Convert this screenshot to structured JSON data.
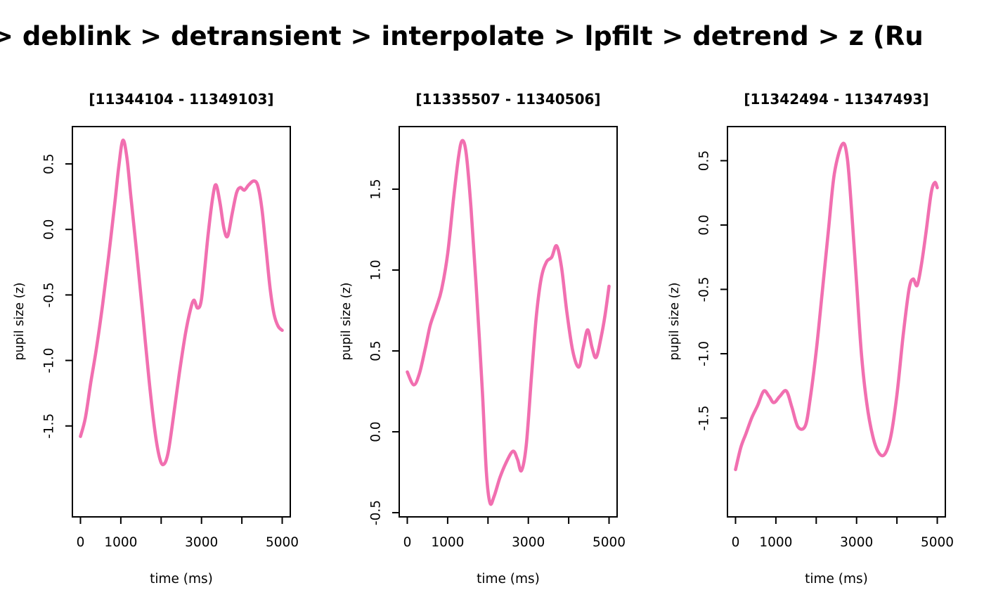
{
  "header": {
    "title": "> deblink > detransient > interpolate > lpfilt > detrend > z (Ru"
  },
  "chart_data": [
    {
      "type": "line",
      "title": "[11344104 - 11349103]",
      "xlabel": "time (ms)",
      "ylabel": "pupil size (z)",
      "xlim": [
        -200,
        5200
      ],
      "ylim": [
        -2.194,
        0.785
      ],
      "x_ticks": {
        "values": [
          0,
          1000,
          2000,
          3000,
          4000,
          5000
        ],
        "labels": [
          "0",
          "1000",
          "",
          "3000",
          "",
          "5000"
        ]
      },
      "y_ticks": {
        "values": [
          0.5,
          0.0,
          -0.5,
          -1.0,
          -1.5
        ],
        "labels": [
          "0.5",
          "0.0",
          "-0.5",
          "-1.0",
          "-1.5"
        ]
      },
      "line_color": "#F16FB0",
      "line_width": 4.6,
      "grid": false,
      "legend": "none",
      "series": [
        {
          "name": "pupil size (z)",
          "x": [
            0,
            120,
            250,
            400,
            550,
            700,
            850,
            950,
            1050,
            1150,
            1250,
            1400,
            1550,
            1700,
            1850,
            1975,
            2075,
            2175,
            2300,
            2450,
            2600,
            2720,
            2810,
            2900,
            2990,
            3080,
            3170,
            3280,
            3360,
            3460,
            3560,
            3650,
            3760,
            3870,
            3960,
            4060,
            4170,
            4300,
            4400,
            4500,
            4600,
            4700,
            4800,
            4900,
            5000
          ],
          "y": [
            -1.58,
            -1.44,
            -1.18,
            -0.9,
            -0.57,
            -0.2,
            0.2,
            0.48,
            0.68,
            0.55,
            0.25,
            -0.2,
            -0.67,
            -1.15,
            -1.55,
            -1.76,
            -1.79,
            -1.7,
            -1.44,
            -1.1,
            -0.8,
            -0.62,
            -0.54,
            -0.6,
            -0.55,
            -0.3,
            -0.02,
            0.25,
            0.34,
            0.2,
            0.0,
            -0.05,
            0.12,
            0.28,
            0.32,
            0.3,
            0.34,
            0.37,
            0.33,
            0.15,
            -0.15,
            -0.45,
            -0.65,
            -0.74,
            -0.77
          ]
        }
      ]
    },
    {
      "type": "line",
      "title": "[11335507 - 11340506]",
      "xlabel": "time (ms)",
      "ylabel": "pupil size (z)",
      "xlim": [
        -200,
        5200
      ],
      "ylim": [
        -0.526,
        1.887
      ],
      "x_ticks": {
        "values": [
          0,
          1000,
          2000,
          3000,
          4000,
          5000
        ],
        "labels": [
          "0",
          "1000",
          "",
          "3000",
          "",
          "5000"
        ]
      },
      "y_ticks": {
        "values": [
          1.5,
          1.0,
          0.5,
          0.0,
          -0.5
        ],
        "labels": [
          "1.5",
          "1.0",
          "0.5",
          "0.0",
          "-0.5"
        ]
      },
      "line_color": "#F16FB0",
      "line_width": 4.6,
      "grid": false,
      "legend": "none",
      "series": [
        {
          "name": "pupil size (z)",
          "x": [
            0,
            160,
            300,
            450,
            570,
            720,
            850,
            1000,
            1150,
            1270,
            1360,
            1460,
            1580,
            1720,
            1860,
            1960,
            2050,
            2150,
            2300,
            2450,
            2620,
            2730,
            2830,
            2950,
            3080,
            3200,
            3320,
            3450,
            3580,
            3700,
            3820,
            3950,
            4100,
            4250,
            4360,
            4470,
            4580,
            4680,
            4800,
            4900,
            5000
          ],
          "y": [
            0.37,
            0.29,
            0.36,
            0.52,
            0.66,
            0.77,
            0.88,
            1.1,
            1.45,
            1.7,
            1.8,
            1.72,
            1.38,
            0.85,
            0.25,
            -0.25,
            -0.44,
            -0.4,
            -0.28,
            -0.19,
            -0.12,
            -0.17,
            -0.24,
            -0.08,
            0.35,
            0.72,
            0.95,
            1.05,
            1.08,
            1.15,
            1.02,
            0.75,
            0.5,
            0.4,
            0.52,
            0.63,
            0.52,
            0.46,
            0.58,
            0.72,
            0.9
          ]
        }
      ]
    },
    {
      "type": "line",
      "title": "[11342494 - 11347493]",
      "xlabel": "time (ms)",
      "ylabel": "pupil size (z)",
      "xlim": [
        -200,
        5200
      ],
      "ylim": [
        -2.268,
        0.765
      ],
      "x_ticks": {
        "values": [
          0,
          1000,
          2000,
          3000,
          4000,
          5000
        ],
        "labels": [
          "0",
          "1000",
          "",
          "3000",
          "",
          "5000"
        ]
      },
      "y_ticks": {
        "values": [
          0.5,
          0.0,
          -0.5,
          -1.0,
          -1.5
        ],
        "labels": [
          "0.5",
          "0.0",
          "-0.5",
          "-1.0",
          "-1.5"
        ]
      },
      "line_color": "#F16FB0",
      "line_width": 4.6,
      "grid": false,
      "legend": "none",
      "series": [
        {
          "name": "pupil size (z)",
          "x": [
            0,
            130,
            260,
            400,
            550,
            700,
            830,
            950,
            1100,
            1260,
            1400,
            1550,
            1730,
            1850,
            2000,
            2150,
            2300,
            2450,
            2650,
            2770,
            2880,
            3000,
            3120,
            3250,
            3400,
            3550,
            3700,
            3850,
            4000,
            4150,
            4300,
            4400,
            4500,
            4600,
            4720,
            4850,
            4940,
            5000
          ],
          "y": [
            -1.9,
            -1.73,
            -1.62,
            -1.5,
            -1.4,
            -1.29,
            -1.33,
            -1.38,
            -1.33,
            -1.29,
            -1.42,
            -1.57,
            -1.56,
            -1.35,
            -0.98,
            -0.52,
            -0.05,
            0.4,
            0.63,
            0.52,
            0.1,
            -0.45,
            -1.0,
            -1.38,
            -1.64,
            -1.77,
            -1.78,
            -1.64,
            -1.32,
            -0.87,
            -0.5,
            -0.42,
            -0.47,
            -0.32,
            -0.06,
            0.25,
            0.33,
            0.29
          ]
        }
      ]
    }
  ]
}
